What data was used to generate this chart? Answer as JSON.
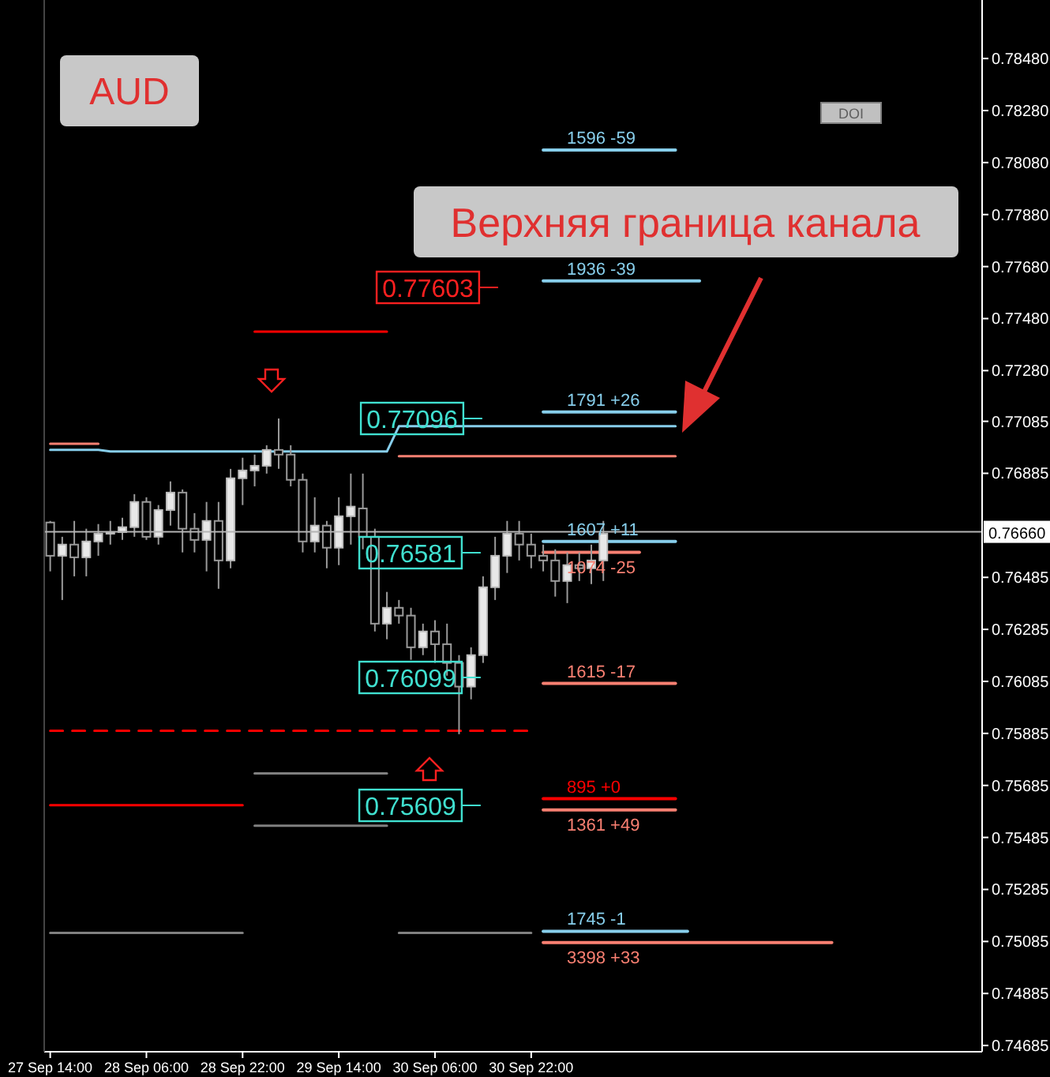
{
  "chart_data": {
    "type": "candlestick",
    "title": "AUD",
    "annotations": [
      "Верхняя граница канала",
      "DOI",
      "0.77603",
      "0.77096",
      "0.76581",
      "0.76099",
      "0.75609"
    ],
    "categories": [
      "27 Sep 14:00",
      null,
      null,
      null,
      null,
      null,
      null,
      null,
      "28 Sep 06:00",
      null,
      null,
      null,
      null,
      null,
      null,
      null,
      "28 Sep 22:00",
      null,
      null,
      null,
      null,
      null,
      null,
      null,
      "29 Sep 14:00",
      null,
      null,
      null,
      null,
      null,
      null,
      null,
      "30 Sep 06:00",
      null,
      null,
      null,
      null,
      null,
      null,
      null,
      "30 Sep 22:00",
      null,
      null,
      null,
      null,
      null,
      null,
      null,
      null,
      null,
      null,
      null,
      null,
      null,
      null,
      null,
      null,
      null,
      null,
      null,
      null,
      null,
      null,
      null,
      null,
      null,
      null,
      null,
      null,
      null,
      null,
      null,
      null,
      null,
      null,
      null,
      null,
      null
    ],
    "ohlc": [
      [
        0.76696,
        0.76702,
        0.76508,
        0.76568
      ],
      [
        0.76568,
        0.76641,
        0.76398,
        0.76611
      ],
      [
        0.76611,
        0.76702,
        0.76489,
        0.76562
      ],
      [
        0.76562,
        0.76672,
        0.76489,
        0.76623
      ],
      [
        0.76623,
        0.7669,
        0.76568,
        0.76653
      ],
      [
        0.76653,
        0.76702,
        0.76611,
        0.76659
      ],
      [
        0.76659,
        0.76714,
        0.76629,
        0.76678
      ],
      [
        0.76678,
        0.76805,
        0.76641,
        0.76775
      ],
      [
        0.76775,
        0.76793,
        0.76629,
        0.76641
      ],
      [
        0.76641,
        0.76763,
        0.76611,
        0.76744
      ],
      [
        0.76744,
        0.76854,
        0.76684,
        0.76811
      ],
      [
        0.76811,
        0.76823,
        0.76581,
        0.76672
      ],
      [
        0.76672,
        0.76732,
        0.76581,
        0.76629
      ],
      [
        0.76629,
        0.76775,
        0.76508,
        0.76702
      ],
      [
        0.76702,
        0.76775,
        0.76441,
        0.7655
      ],
      [
        0.7655,
        0.76902,
        0.7652,
        0.76866
      ],
      [
        0.76866,
        0.76945,
        0.76763,
        0.76896
      ],
      [
        0.76896,
        0.76957,
        0.76835,
        0.76914
      ],
      [
        0.76914,
        0.76993,
        0.76884,
        0.76975
      ],
      [
        0.76975,
        0.77096,
        0.76902,
        0.76957
      ],
      [
        0.76957,
        0.76993,
        0.76835,
        0.7686
      ],
      [
        0.7686,
        0.76884,
        0.76581,
        0.76623
      ],
      [
        0.76623,
        0.76793,
        0.76581,
        0.76684
      ],
      [
        0.76684,
        0.76702,
        0.7652,
        0.76599
      ],
      [
        0.76599,
        0.76793,
        0.76532,
        0.7672
      ],
      [
        0.7672,
        0.76884,
        0.76611,
        0.76757
      ],
      [
        0.7675,
        0.76884,
        0.76593,
        0.76641
      ],
      [
        0.76641,
        0.76672,
        0.76277,
        0.76307
      ],
      [
        0.76307,
        0.76429,
        0.76247,
        0.76368
      ],
      [
        0.76368,
        0.76398,
        0.76307,
        0.76338
      ],
      [
        0.76338,
        0.76368,
        0.76168,
        0.76216
      ],
      [
        0.76216,
        0.76307,
        0.76186,
        0.76277
      ],
      [
        0.76277,
        0.7632,
        0.76156,
        0.76228
      ],
      [
        0.76228,
        0.76307,
        0.76107,
        0.76156
      ],
      [
        0.76156,
        0.76186,
        0.75882,
        0.76065
      ],
      [
        0.76065,
        0.76216,
        0.76016,
        0.76186
      ],
      [
        0.76186,
        0.76489,
        0.76156,
        0.76447
      ],
      [
        0.76447,
        0.76641,
        0.76398,
        0.76568
      ],
      [
        0.76568,
        0.76702,
        0.76502,
        0.76653
      ],
      [
        0.76653,
        0.76702,
        0.7655,
        0.76611
      ],
      [
        0.76611,
        0.76653,
        0.7652,
        0.76568
      ],
      [
        0.76568,
        0.76611,
        0.76508,
        0.7655
      ],
      [
        0.7655,
        0.76593,
        0.76411,
        0.76471
      ],
      [
        0.76471,
        0.76581,
        0.76386,
        0.76532
      ],
      [
        0.76532,
        0.76581,
        0.76471,
        0.7652
      ],
      [
        0.7652,
        0.76611,
        0.76459,
        0.7655
      ],
      [
        0.7655,
        0.76702,
        0.76471,
        0.76653
      ],
      null,
      null,
      null,
      null,
      null,
      null,
      null,
      null,
      null,
      null,
      null,
      null,
      null,
      null,
      null,
      null,
      null,
      null,
      null,
      null,
      null,
      null,
      null,
      null,
      null,
      null,
      null,
      null,
      null,
      null,
      null
    ],
    "series": [
      {
        "type": "line",
        "color": "#87ceeb",
        "values": [
          0.76975,
          0.76975,
          0.76975,
          0.76975,
          0.76975,
          0.76969,
          0.76969,
          0.76969,
          0.76969,
          0.76969,
          0.76969,
          0.76969,
          0.76969,
          0.76969,
          0.76969,
          0.76969,
          0.76969,
          0.76969,
          0.76969,
          0.76969,
          0.76969,
          0.76969,
          0.76969,
          0.76969,
          0.76969,
          0.76969,
          0.76969,
          0.76969,
          0.76969,
          0.77066,
          0.77066,
          0.77066,
          0.77066,
          0.77066,
          0.77066,
          0.77066,
          0.77066,
          0.77066,
          0.77066,
          0.77066,
          0.77066,
          0.77066,
          0.77066,
          0.77066,
          0.77066,
          0.77066,
          0.77066,
          0.77066,
          0.77066,
          0.77066,
          0.77066,
          0.77066,
          0.77066,
          null,
          null,
          null,
          null,
          null,
          null,
          null,
          null,
          null,
          null,
          null,
          null,
          null,
          null,
          null,
          null,
          null,
          null,
          null,
          null,
          null,
          null,
          null,
          null,
          null
        ]
      },
      {
        "type": "line",
        "color": "#fa8072",
        "values": [
          0.76999,
          0.76999,
          0.76999,
          0.76999,
          0.76999,
          null,
          null,
          null,
          null,
          null,
          null,
          null,
          null,
          null,
          null,
          null,
          null,
          null,
          null,
          null,
          null,
          null,
          null,
          null,
          null,
          null,
          null,
          null,
          null,
          null,
          null,
          null,
          null,
          null,
          null,
          null,
          null,
          null,
          null,
          null,
          null,
          null,
          null,
          null,
          null,
          null,
          null,
          null,
          null,
          null,
          null,
          null,
          null,
          null,
          null,
          null,
          null,
          null,
          null,
          null,
          null,
          null,
          null,
          null,
          null,
          null,
          null,
          null,
          null,
          null,
          null,
          null,
          null,
          null,
          null,
          null,
          null,
          null
        ]
      },
      {
        "type": "line",
        "name": "1596 -59",
        "color": "#87ceeb",
        "values": [
          null,
          null,
          null,
          null,
          null,
          null,
          null,
          null,
          null,
          null,
          null,
          null,
          null,
          null,
          null,
          null,
          null,
          null,
          null,
          null,
          null,
          null,
          null,
          null,
          null,
          null,
          null,
          null,
          null,
          null,
          null,
          null,
          null,
          null,
          null,
          null,
          null,
          null,
          null,
          null,
          null,
          0.78128,
          0.78128,
          0.78128,
          0.78128,
          0.78128,
          0.78128,
          0.78128,
          0.78128,
          0.78128,
          0.78128,
          0.78128,
          0.78128,
          null,
          null,
          null,
          null,
          null,
          null,
          null,
          null,
          null,
          null,
          null,
          null,
          null,
          null,
          null,
          null,
          null,
          null,
          null,
          null,
          null,
          null,
          null,
          null,
          null
        ]
      },
      {
        "type": "line",
        "name": "1936 -39",
        "color": "#87ceeb",
        "values": [
          null,
          null,
          null,
          null,
          null,
          null,
          null,
          null,
          null,
          null,
          null,
          null,
          null,
          null,
          null,
          null,
          null,
          null,
          null,
          null,
          null,
          null,
          null,
          null,
          null,
          null,
          null,
          null,
          null,
          null,
          null,
          null,
          null,
          null,
          null,
          null,
          null,
          null,
          null,
          null,
          null,
          0.77625,
          0.77625,
          0.77625,
          0.77625,
          0.77625,
          0.77625,
          0.77625,
          0.77625,
          0.77625,
          0.77625,
          0.77625,
          0.77625,
          0.77625,
          0.77625,
          null,
          null,
          null,
          null,
          null,
          null,
          null,
          null,
          null,
          null,
          null,
          null,
          null,
          null,
          null,
          null,
          null,
          null,
          null,
          null,
          null,
          null,
          null
        ]
      },
      {
        "type": "line",
        "name": "1791 +26",
        "color": "#87ceeb",
        "values": [
          null,
          null,
          null,
          null,
          null,
          null,
          null,
          null,
          null,
          null,
          null,
          null,
          null,
          null,
          null,
          null,
          null,
          null,
          null,
          null,
          null,
          null,
          null,
          null,
          null,
          null,
          null,
          null,
          null,
          null,
          null,
          null,
          null,
          null,
          null,
          null,
          null,
          null,
          null,
          null,
          null,
          0.77121,
          0.77121,
          0.77121,
          0.77121,
          0.77121,
          0.77121,
          0.77121,
          0.77121,
          0.77121,
          0.77121,
          0.77121,
          0.77121,
          null,
          null,
          null,
          null,
          null,
          null,
          null,
          null,
          null,
          null,
          null,
          null,
          null,
          null,
          null,
          null,
          null,
          null,
          null,
          null,
          null,
          null,
          null,
          null,
          null
        ]
      },
      {
        "type": "line",
        "name": "1607 +11",
        "color": "#87ceeb",
        "values": [
          null,
          null,
          null,
          null,
          null,
          null,
          null,
          null,
          null,
          null,
          null,
          null,
          null,
          null,
          null,
          null,
          null,
          null,
          null,
          null,
          null,
          null,
          null,
          null,
          null,
          null,
          null,
          null,
          null,
          null,
          null,
          null,
          null,
          null,
          null,
          null,
          null,
          null,
          null,
          null,
          null,
          0.76623,
          0.76623,
          0.76623,
          0.76623,
          0.76623,
          0.76623,
          0.76623,
          0.76623,
          0.76623,
          0.76623,
          0.76623,
          0.76623,
          null,
          null,
          null,
          null,
          null,
          null,
          null,
          null,
          null,
          null,
          null,
          null,
          null,
          null,
          null,
          null,
          null,
          null,
          null,
          null,
          null,
          null,
          null,
          null,
          null
        ]
      },
      {
        "type": "line",
        "name": "1074 -25",
        "color": "#fa8072",
        "values": [
          null,
          null,
          null,
          null,
          null,
          null,
          null,
          null,
          null,
          null,
          null,
          null,
          null,
          null,
          null,
          null,
          null,
          null,
          null,
          null,
          null,
          null,
          null,
          null,
          null,
          null,
          null,
          null,
          null,
          null,
          null,
          null,
          null,
          null,
          null,
          null,
          null,
          null,
          null,
          null,
          null,
          0.76581,
          0.76581,
          0.76581,
          0.76581,
          0.76581,
          0.76581,
          0.76581,
          0.76581,
          0.76581,
          null,
          null,
          null,
          null,
          null,
          null,
          null,
          null,
          null,
          null,
          null,
          null,
          null,
          null,
          null,
          null,
          null,
          null,
          null,
          null,
          null,
          null,
          null,
          null,
          null,
          null,
          null,
          null
        ]
      },
      {
        "type": "line",
        "name": "1615 -17",
        "color": "#fa8072",
        "values": [
          null,
          null,
          null,
          null,
          null,
          null,
          null,
          null,
          null,
          null,
          null,
          null,
          null,
          null,
          null,
          null,
          null,
          null,
          null,
          null,
          null,
          null,
          null,
          null,
          null,
          null,
          null,
          null,
          null,
          null,
          null,
          null,
          null,
          null,
          null,
          null,
          null,
          null,
          null,
          null,
          null,
          0.76077,
          0.76077,
          0.76077,
          0.76077,
          0.76077,
          0.76077,
          0.76077,
          0.76077,
          0.76077,
          0.76077,
          0.76077,
          0.76077,
          null,
          null,
          null,
          null,
          null,
          null,
          null,
          null,
          null,
          null,
          null,
          null,
          null,
          null,
          null,
          null,
          null,
          null,
          null,
          null,
          null,
          null,
          null,
          null,
          null
        ]
      },
      {
        "type": "line",
        "name": "895 +0",
        "color": "#ff0000",
        "values": [
          null,
          null,
          null,
          null,
          null,
          null,
          null,
          null,
          null,
          null,
          null,
          null,
          null,
          null,
          null,
          null,
          null,
          null,
          null,
          null,
          null,
          null,
          null,
          null,
          null,
          null,
          null,
          null,
          null,
          null,
          null,
          null,
          null,
          null,
          null,
          null,
          null,
          null,
          null,
          null,
          null,
          0.75634,
          0.75634,
          0.75634,
          0.75634,
          0.75634,
          0.75634,
          0.75634,
          0.75634,
          0.75634,
          0.75634,
          0.75634,
          0.75634,
          null,
          null,
          null,
          null,
          null,
          null,
          null,
          null,
          null,
          null,
          null,
          null,
          null,
          null,
          null,
          null,
          null,
          null,
          null,
          null,
          null,
          null,
          null,
          null,
          null
        ]
      },
      {
        "type": "line",
        "name": "1361 +49",
        "color": "#fa8072",
        "values": [
          null,
          null,
          null,
          null,
          null,
          null,
          null,
          null,
          null,
          null,
          null,
          null,
          null,
          null,
          null,
          null,
          null,
          null,
          null,
          null,
          null,
          null,
          null,
          null,
          null,
          null,
          null,
          null,
          null,
          null,
          null,
          null,
          null,
          null,
          null,
          null,
          null,
          null,
          null,
          null,
          null,
          0.75591,
          0.75591,
          0.75591,
          0.75591,
          0.75591,
          0.75591,
          0.75591,
          0.75591,
          0.75591,
          0.75591,
          0.75591,
          0.75591,
          null,
          null,
          null,
          null,
          null,
          null,
          null,
          null,
          null,
          null,
          null,
          null,
          null,
          null,
          null,
          null,
          null,
          null,
          null,
          null,
          null,
          null,
          null,
          null,
          null
        ]
      },
      {
        "type": "line",
        "name": "1745 -1",
        "color": "#87ceeb",
        "values": [
          null,
          null,
          null,
          null,
          null,
          null,
          null,
          null,
          null,
          null,
          null,
          null,
          null,
          null,
          null,
          null,
          null,
          null,
          null,
          null,
          null,
          null,
          null,
          null,
          null,
          null,
          null,
          null,
          null,
          null,
          null,
          null,
          null,
          null,
          null,
          null,
          null,
          null,
          null,
          null,
          null,
          0.75124,
          0.75124,
          0.75124,
          0.75124,
          0.75124,
          0.75124,
          0.75124,
          0.75124,
          0.75124,
          0.75124,
          0.75124,
          0.75124,
          0.75124,
          null,
          null,
          null,
          null,
          null,
          null,
          null,
          null,
          null,
          null,
          null,
          null,
          null,
          null,
          null,
          null,
          null,
          null,
          null,
          null,
          null,
          null,
          null,
          null
        ]
      },
      {
        "type": "line",
        "name": "3398 +33",
        "color": "#fa8072",
        "values": [
          null,
          null,
          null,
          null,
          null,
          null,
          null,
          null,
          null,
          null,
          null,
          null,
          null,
          null,
          null,
          null,
          null,
          null,
          null,
          null,
          null,
          null,
          null,
          null,
          null,
          null,
          null,
          null,
          null,
          null,
          null,
          null,
          null,
          null,
          null,
          null,
          null,
          null,
          null,
          null,
          null,
          0.75081,
          0.75081,
          0.75081,
          0.75081,
          0.75081,
          0.75081,
          0.75081,
          0.75081,
          0.75081,
          0.75081,
          0.75081,
          0.75081,
          0.75081,
          0.75081,
          0.75081,
          0.75081,
          0.75081,
          0.75081,
          0.75081,
          0.75081,
          0.75081,
          0.75081,
          0.75081,
          0.75081,
          0.75081,
          null,
          null,
          null,
          null,
          null,
          null,
          null,
          null,
          null,
          null,
          null,
          null
        ]
      },
      {
        "type": "line",
        "color": "#fa8072",
        "values": [
          null,
          null,
          null,
          null,
          null,
          null,
          null,
          null,
          null,
          null,
          null,
          null,
          null,
          null,
          null,
          null,
          null,
          null,
          null,
          null,
          null,
          null,
          null,
          null,
          null,
          null,
          null,
          null,
          null,
          0.76951,
          0.76951,
          0.76951,
          0.76951,
          0.76951,
          0.76951,
          0.76951,
          0.76951,
          0.76951,
          0.76951,
          0.76951,
          0.76951,
          0.76951,
          0.76951,
          0.76951,
          0.76951,
          0.76951,
          0.76951,
          0.76951,
          0.76951,
          0.76951,
          0.76951,
          0.76951,
          0.76951,
          null,
          null,
          null,
          null,
          null,
          null,
          null,
          null,
          null,
          null,
          null,
          null,
          null,
          null,
          null,
          null,
          null,
          null,
          null,
          null,
          null,
          null,
          null,
          null,
          null
        ]
      },
      {
        "type": "line",
        "color": "#ff0000",
        "values": [
          null,
          null,
          null,
          null,
          null,
          null,
          null,
          null,
          null,
          null,
          null,
          null,
          null,
          null,
          null,
          null,
          null,
          0.7743,
          0.7743,
          0.7743,
          0.7743,
          0.7743,
          0.7743,
          0.7743,
          0.7743,
          0.7743,
          0.7743,
          0.7743,
          0.7743,
          null,
          null,
          null,
          null,
          null,
          null,
          null,
          null,
          null,
          null,
          null,
          null,
          null,
          null,
          null,
          null,
          null,
          null,
          null,
          null,
          null,
          null,
          null,
          null,
          null,
          null,
          null,
          null,
          null,
          null,
          null,
          null,
          null,
          null,
          null,
          null,
          null,
          null,
          null,
          null,
          null,
          null,
          null,
          null,
          null,
          null,
          null,
          null,
          null
        ]
      },
      {
        "type": "line",
        "color": "#808080",
        "values": [
          null,
          null,
          null,
          null,
          null,
          null,
          null,
          null,
          null,
          null,
          null,
          null,
          null,
          null,
          null,
          null,
          null,
          0.75731,
          0.75731,
          0.75731,
          0.75731,
          0.75731,
          0.75731,
          0.75731,
          0.75731,
          0.75731,
          0.75731,
          0.75731,
          0.75731,
          null,
          null,
          null,
          null,
          null,
          null,
          null,
          null,
          null,
          null,
          null,
          null,
          null,
          null,
          null,
          null,
          null,
          null,
          null,
          null,
          null,
          null,
          null,
          null,
          null,
          null,
          null,
          null,
          null,
          null,
          null,
          null,
          null,
          null,
          null,
          null,
          null,
          null,
          null,
          null,
          null,
          null,
          null,
          null,
          null,
          null,
          null,
          null,
          null
        ]
      },
      {
        "type": "line",
        "color": "#808080",
        "values": [
          null,
          null,
          null,
          null,
          null,
          null,
          null,
          null,
          null,
          null,
          null,
          null,
          null,
          null,
          null,
          null,
          null,
          0.7553,
          0.7553,
          0.7553,
          0.7553,
          0.7553,
          0.7553,
          0.7553,
          0.7553,
          0.7553,
          0.7553,
          0.7553,
          0.7553,
          null,
          null,
          null,
          null,
          null,
          null,
          null,
          null,
          null,
          null,
          null,
          null,
          null,
          null,
          null,
          null,
          null,
          null,
          null,
          null,
          null,
          null,
          null,
          null,
          null,
          null,
          null,
          null,
          null,
          null,
          null,
          null,
          null,
          null,
          null,
          null,
          null,
          null,
          null,
          null,
          null,
          null,
          null,
          null,
          null,
          null,
          null,
          null,
          null
        ]
      },
      {
        "type": "line",
        "color": "#ff0000",
        "values": [
          0.75609,
          0.75609,
          0.75609,
          0.75609,
          0.75609,
          0.75609,
          0.75609,
          0.75609,
          0.75609,
          0.75609,
          0.75609,
          0.75609,
          0.75609,
          0.75609,
          0.75609,
          0.75609,
          0.75609,
          null,
          null,
          null,
          null,
          null,
          null,
          null,
          null,
          null,
          null,
          null,
          null,
          null,
          null,
          null,
          null,
          null,
          null,
          null,
          null,
          null,
          null,
          null,
          null,
          null,
          null,
          null,
          null,
          null,
          null,
          null,
          null,
          null,
          null,
          null,
          null,
          null,
          null,
          null,
          null,
          null,
          null,
          null,
          null,
          null,
          null,
          null,
          null,
          null,
          null,
          null,
          null,
          null,
          null,
          null,
          null,
          null,
          null,
          null,
          null,
          null
        ]
      },
      {
        "type": "line",
        "color": "#808080",
        "values": [
          0.75118,
          0.75118,
          0.75118,
          0.75118,
          0.75118,
          0.75118,
          0.75118,
          0.75118,
          0.75118,
          0.75118,
          0.75118,
          0.75118,
          0.75118,
          0.75118,
          0.75118,
          0.75118,
          0.75118,
          null,
          null,
          null,
          null,
          null,
          null,
          null,
          null,
          null,
          null,
          null,
          null,
          0.75118,
          0.75118,
          0.75118,
          0.75118,
          0.75118,
          0.75118,
          0.75118,
          0.75118,
          0.75118,
          0.75118,
          0.75118,
          0.75118,
          null,
          null,
          null,
          null,
          null,
          null,
          null,
          null,
          null,
          null,
          null,
          null,
          null,
          null,
          null,
          null,
          null,
          null,
          null,
          null,
          null,
          null,
          null,
          null,
          null,
          null,
          null,
          null,
          null,
          null,
          null,
          null,
          null,
          null,
          null,
          null,
          null
        ]
      },
      {
        "type": "line",
        "color": "#ff0000",
        "line_style": "dashed",
        "values": [
          0.75895,
          0.75895,
          0.75895,
          0.75895,
          0.75895,
          0.75895,
          0.75895,
          0.75895,
          0.75895,
          0.75895,
          0.75895,
          0.75895,
          0.75895,
          0.75895,
          0.75895,
          0.75895,
          0.75895,
          0.75895,
          0.75895,
          0.75895,
          0.75895,
          0.75895,
          0.75895,
          0.75895,
          0.75895,
          0.75895,
          0.75895,
          0.75895,
          0.75895,
          0.75895,
          0.75895,
          0.75895,
          0.75895,
          0.75895,
          0.75895,
          0.75895,
          0.75895,
          0.75895,
          0.75895,
          0.75895,
          0.75895,
          null,
          null,
          null,
          null,
          null,
          null,
          null,
          null,
          null,
          null,
          null,
          null,
          null,
          null,
          null,
          null,
          null,
          null,
          null,
          null,
          null,
          null,
          null,
          null,
          null,
          null,
          null,
          null,
          null,
          null,
          null,
          null,
          null,
          null,
          null,
          null,
          null
        ]
      }
    ],
    "ref_lines": [
      {
        "axis": "y",
        "value": 0.7666,
        "label": "0.76660",
        "color": "#b4b4b4"
      }
    ],
    "ylim": [
      0.74661,
      0.78705
    ],
    "yticks": [
      {
        "value": 0.7848,
        "label": "0.78480"
      },
      {
        "value": 0.7828,
        "label": "0.78280"
      },
      {
        "value": 0.7808,
        "label": "0.78080"
      },
      {
        "value": 0.7788,
        "label": "0.77880"
      },
      {
        "value": 0.7768,
        "label": "0.77680"
      },
      {
        "value": 0.7748,
        "label": "0.77480"
      },
      {
        "value": 0.7728,
        "label": "0.77280"
      },
      {
        "value": 0.77085,
        "label": "0.77085"
      },
      {
        "value": 0.76885,
        "label": "0.76885"
      },
      {
        "value": 0.76485,
        "label": "0.76485"
      },
      {
        "value": 0.76285,
        "label": "0.76285"
      },
      {
        "value": 0.76085,
        "label": "0.76085"
      },
      {
        "value": 0.75885,
        "label": "0.75885"
      },
      {
        "value": 0.75685,
        "label": "0.75685"
      },
      {
        "value": 0.75485,
        "label": "0.75485"
      },
      {
        "value": 0.75285,
        "label": "0.75285"
      },
      {
        "value": 0.75085,
        "label": "0.75085"
      },
      {
        "value": 0.74885,
        "label": "0.74885"
      },
      {
        "value": 0.74685,
        "label": "0.74685"
      }
    ]
  }
}
